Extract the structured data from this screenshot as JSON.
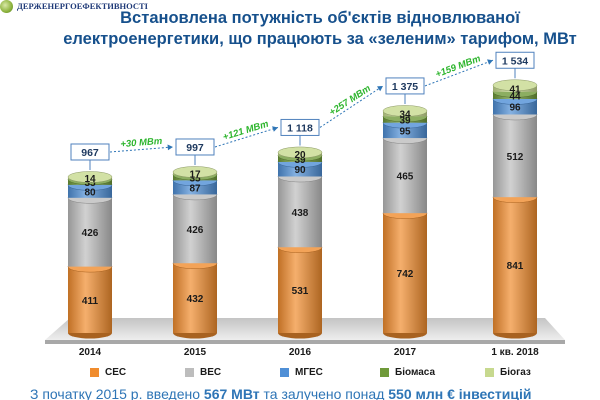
{
  "header": {
    "logo_text": "ДЕРЖЕНЕРГОЕФЕКТИВНОСТІ",
    "title_line1": "Встановлена потужність об'єктів відновлюваної",
    "title_line2": "електроенергетики, що працюють за «зеленим» тарифом, МВт"
  },
  "chart_data": {
    "type": "bar",
    "stacked": true,
    "title": "Встановлена потужність об'єктів відновлюваної електроенергетики, що працюють за «зеленим» тарифом, МВт",
    "categories": [
      "2014",
      "2015",
      "2016",
      "2017",
      "1 кв. 2018"
    ],
    "series": [
      {
        "name": "СЕС",
        "color": "#f08c2e",
        "values": [
          411,
          432,
          531,
          742,
          841
        ]
      },
      {
        "name": "ВЕС",
        "color": "#bdbdbd",
        "values": [
          426,
          426,
          438,
          465,
          512
        ]
      },
      {
        "name": "МГЕС",
        "color": "#4f8fd6",
        "values": [
          80,
          87,
          90,
          95,
          96
        ]
      },
      {
        "name": "Біомаса",
        "color": "#6f9a3a",
        "values": [
          35,
          35,
          39,
          39,
          44
        ]
      },
      {
        "name": "Біогаз",
        "color": "#c7d98f",
        "values": [
          14,
          17,
          20,
          34,
          41
        ]
      }
    ],
    "totals": [
      "967",
      "997",
      "1 118",
      "1 375",
      "1 534"
    ],
    "growth": [
      "+30 МВт",
      "+121 МВт",
      "+257 МВт",
      "+159 МВт"
    ],
    "legend_position": "bottom"
  },
  "legend": {
    "items": [
      "СЕС",
      "ВЕС",
      "МГЕС",
      "Біомаса",
      "Біогаз"
    ]
  },
  "footnote": {
    "part1": "З початку 2015 р. введено ",
    "bold1": "567 МВт",
    "part2": " та залучено понад ",
    "bold2": "550 млн € інвестицій"
  }
}
